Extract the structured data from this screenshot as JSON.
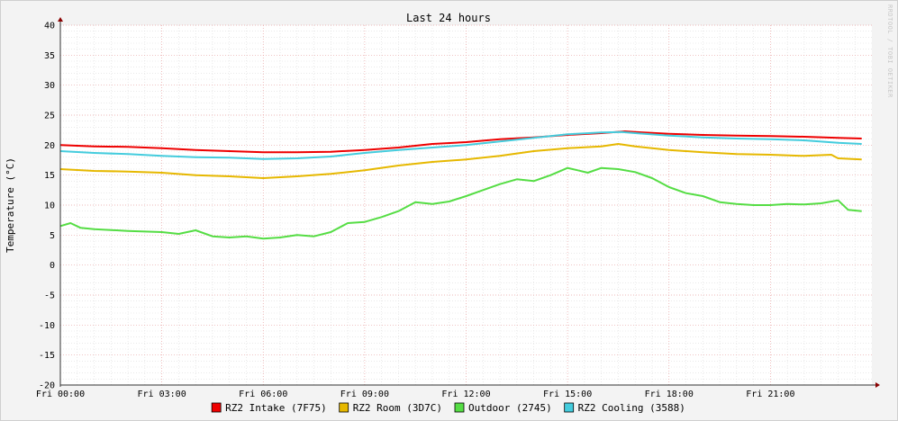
{
  "chart_data": {
    "type": "line",
    "title": "Last 24 hours",
    "ylabel": "Temperature (°C)",
    "xlabel": "",
    "watermark": "RRDTOOL / TOBI OETIKER",
    "ylim": [
      -20,
      40
    ],
    "xlim": [
      0,
      24
    ],
    "y_ticks": [
      40,
      35,
      30,
      25,
      20,
      15,
      10,
      5,
      0,
      -5,
      -10,
      -15,
      -20
    ],
    "x_ticks": [
      {
        "hour": 0,
        "label": "Fri 00:00"
      },
      {
        "hour": 3,
        "label": "Fri 03:00"
      },
      {
        "hour": 6,
        "label": "Fri 06:00"
      },
      {
        "hour": 9,
        "label": "Fri 09:00"
      },
      {
        "hour": 12,
        "label": "Fri 12:00"
      },
      {
        "hour": 15,
        "label": "Fri 15:00"
      },
      {
        "hour": 18,
        "label": "Fri 18:00"
      },
      {
        "hour": 21,
        "label": "Fri 21:00"
      }
    ],
    "grid": true,
    "legend": "bottom",
    "series": [
      {
        "name": "RZ2 Intake (7F75)",
        "color": "#ee0000",
        "x": [
          0,
          1,
          2,
          3,
          4,
          5,
          6,
          7,
          8,
          9,
          10,
          11,
          12,
          13,
          14,
          15,
          16,
          16.7,
          17,
          18,
          19,
          20,
          21,
          22,
          23,
          23.7
        ],
        "y": [
          20.0,
          19.8,
          19.7,
          19.5,
          19.2,
          19.0,
          18.8,
          18.8,
          18.9,
          19.2,
          19.6,
          20.2,
          20.5,
          21.0,
          21.3,
          21.7,
          22.0,
          22.3,
          22.2,
          21.9,
          21.7,
          21.6,
          21.5,
          21.4,
          21.2,
          21.1
        ]
      },
      {
        "name": "RZ2 Room (3D7C)",
        "color": "#e6b800",
        "x": [
          0,
          1,
          2,
          3,
          4,
          5,
          6,
          7,
          8,
          9,
          10,
          11,
          12,
          13,
          14,
          15,
          16,
          16.5,
          17,
          18,
          19,
          20,
          21,
          22,
          22.8,
          23,
          23.7
        ],
        "y": [
          16.0,
          15.7,
          15.6,
          15.4,
          15.0,
          14.8,
          14.5,
          14.8,
          15.2,
          15.8,
          16.6,
          17.2,
          17.6,
          18.2,
          19.0,
          19.5,
          19.8,
          20.2,
          19.8,
          19.2,
          18.8,
          18.5,
          18.4,
          18.2,
          18.4,
          17.8,
          17.6
        ]
      },
      {
        "name": "Outdoor (2745)",
        "color": "#55dd44",
        "x": [
          0,
          0.3,
          0.6,
          1,
          2,
          3,
          3.5,
          4,
          4.5,
          5,
          5.5,
          6,
          6.5,
          7,
          7.5,
          8,
          8.5,
          9,
          9.5,
          10,
          10.5,
          11,
          11.5,
          12,
          12.5,
          13,
          13.5,
          14,
          14.5,
          15,
          15.3,
          15.6,
          16,
          16.5,
          17,
          17.5,
          18,
          18.5,
          19,
          19.5,
          20,
          20.5,
          21,
          21.5,
          22,
          22.5,
          23,
          23.3,
          23.7
        ],
        "y": [
          6.5,
          7.0,
          6.2,
          6.0,
          5.7,
          5.5,
          5.2,
          5.8,
          4.8,
          4.6,
          4.8,
          4.4,
          4.6,
          5.0,
          4.8,
          5.5,
          7.0,
          7.2,
          8.0,
          9.0,
          10.5,
          10.2,
          10.6,
          11.5,
          12.5,
          13.5,
          14.3,
          14.0,
          15.0,
          16.2,
          15.8,
          15.4,
          16.2,
          16.0,
          15.5,
          14.5,
          13.0,
          12.0,
          11.5,
          10.5,
          10.2,
          10.0,
          10.0,
          10.2,
          10.1,
          10.3,
          10.8,
          9.2,
          9.0
        ]
      },
      {
        "name": "RZ2 Cooling (3588)",
        "color": "#44ccdd",
        "x": [
          0,
          1,
          2,
          3,
          4,
          5,
          6,
          7,
          8,
          9,
          10,
          11,
          12,
          13,
          14,
          15,
          16,
          16.6,
          17,
          18,
          19,
          20,
          21,
          22,
          23,
          23.7
        ],
        "y": [
          19.0,
          18.7,
          18.5,
          18.2,
          18.0,
          17.9,
          17.7,
          17.8,
          18.1,
          18.7,
          19.2,
          19.6,
          20.0,
          20.6,
          21.2,
          21.8,
          22.1,
          22.2,
          22.0,
          21.6,
          21.3,
          21.1,
          21.0,
          20.8,
          20.4,
          20.2
        ]
      }
    ]
  }
}
